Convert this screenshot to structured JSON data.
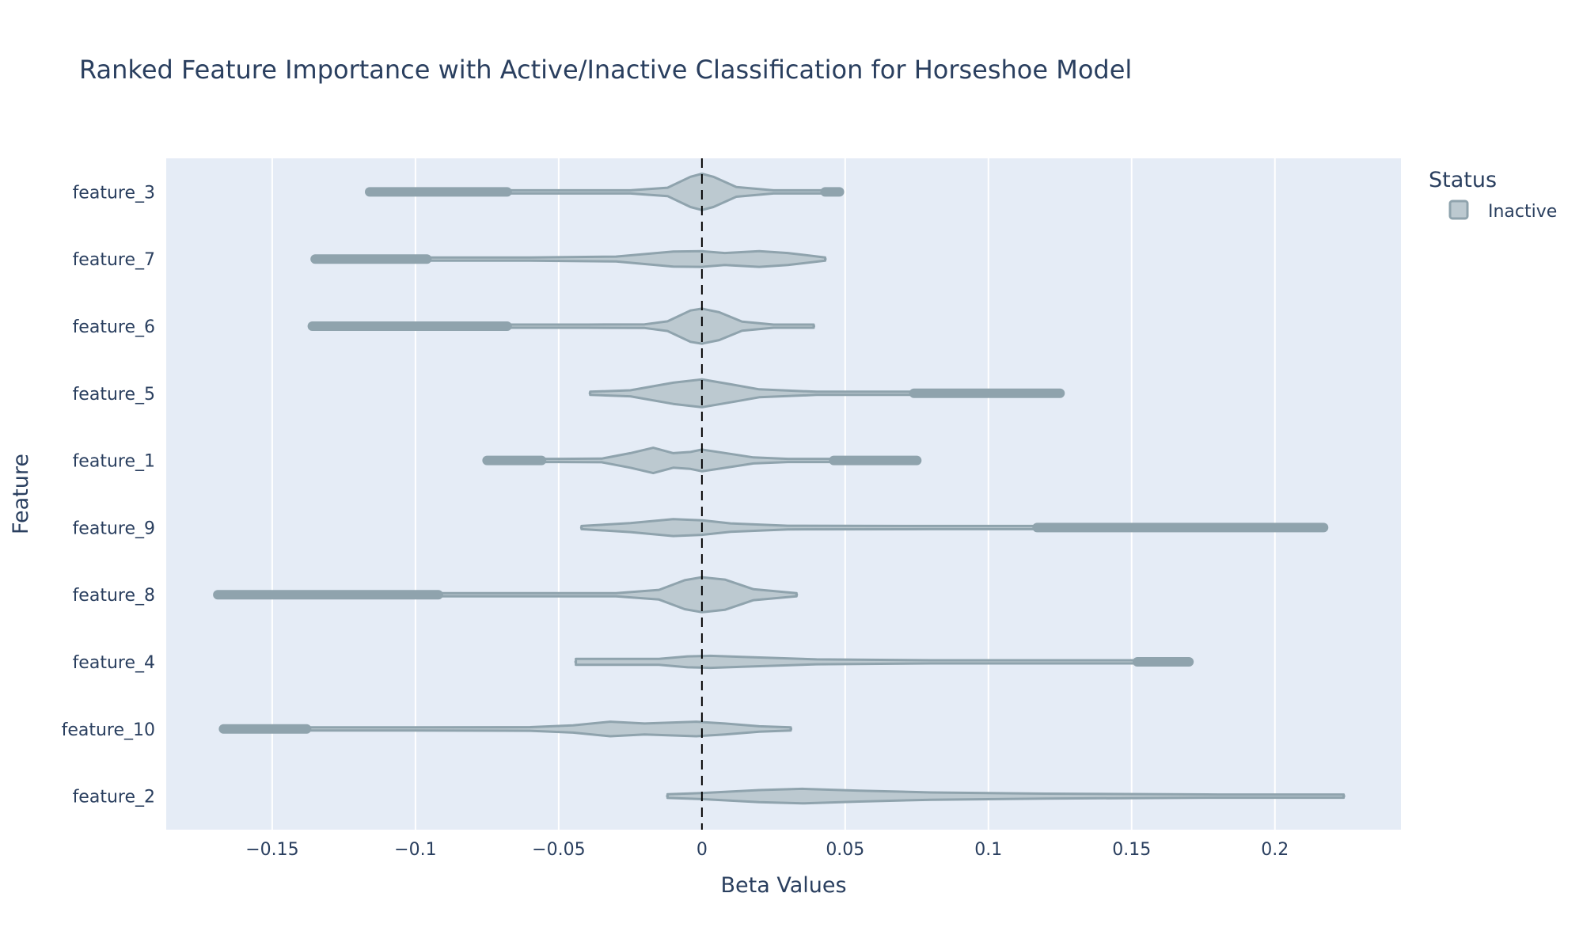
{
  "chart_data": {
    "type": "violin",
    "title": "Ranked Feature Importance with Active/Inactive Classification for Horseshoe Model",
    "xlabel": "Beta Values",
    "ylabel": "Feature",
    "xlim": [
      -0.187,
      0.244
    ],
    "xticks": [
      -0.15,
      -0.1,
      -0.05,
      0,
      0.05,
      0.1,
      0.15,
      0.2
    ],
    "xtick_labels": [
      "−0.15",
      "−0.1",
      "−0.05",
      "0",
      "0.05",
      "0.1",
      "0.15",
      "0.2"
    ],
    "reference_line": {
      "x": 0,
      "style": "dashed",
      "color": "#000000"
    },
    "grid": true,
    "legend": {
      "title": "Status",
      "position": "top-right",
      "entries": [
        {
          "name": "Inactive",
          "color": "#8fa3ad"
        }
      ]
    },
    "colors": {
      "background": "#e5ecf6",
      "violin_fill": "#bcc9d0",
      "violin_line": "#8fa3ad",
      "text": "#2a3f5f"
    },
    "features": [
      {
        "name": "feature_3",
        "status": "Inactive",
        "min": -0.116,
        "max": 0.048,
        "outliers_low": [
          -0.116,
          -0.068
        ],
        "outliers_high": [
          0.043,
          0.048
        ],
        "density": [
          [
            -0.116,
            0.01
          ],
          [
            -0.05,
            0.02
          ],
          [
            -0.025,
            0.05
          ],
          [
            -0.012,
            0.14
          ],
          [
            -0.004,
            0.5
          ],
          [
            0,
            0.6
          ],
          [
            0.004,
            0.5
          ],
          [
            0.012,
            0.16
          ],
          [
            0.025,
            0.05
          ],
          [
            0.048,
            0.01
          ]
        ]
      },
      {
        "name": "feature_7",
        "status": "Inactive",
        "min": -0.135,
        "max": 0.043,
        "outliers_low": [
          -0.135,
          -0.096
        ],
        "outliers_high": [],
        "density": [
          [
            -0.135,
            0.01
          ],
          [
            -0.06,
            0.03
          ],
          [
            -0.03,
            0.08
          ],
          [
            -0.01,
            0.25
          ],
          [
            0,
            0.26
          ],
          [
            0.008,
            0.2
          ],
          [
            0.02,
            0.26
          ],
          [
            0.03,
            0.2
          ],
          [
            0.043,
            0.03
          ]
        ]
      },
      {
        "name": "feature_6",
        "status": "Inactive",
        "min": -0.136,
        "max": 0.039,
        "outliers_low": [
          -0.136,
          -0.068
        ],
        "outliers_high": [],
        "density": [
          [
            -0.136,
            0.01
          ],
          [
            -0.04,
            0.03
          ],
          [
            -0.02,
            0.06
          ],
          [
            -0.012,
            0.16
          ],
          [
            -0.004,
            0.52
          ],
          [
            0,
            0.58
          ],
          [
            0.006,
            0.46
          ],
          [
            0.014,
            0.15
          ],
          [
            0.025,
            0.05
          ],
          [
            0.039,
            0.02
          ]
        ]
      },
      {
        "name": "feature_5",
        "status": "Inactive",
        "min": -0.039,
        "max": 0.125,
        "outliers_low": [],
        "outliers_high": [
          0.074,
          0.125
        ],
        "density": [
          [
            -0.039,
            0.03
          ],
          [
            -0.025,
            0.1
          ],
          [
            -0.01,
            0.35
          ],
          [
            0,
            0.46
          ],
          [
            0.01,
            0.3
          ],
          [
            0.02,
            0.13
          ],
          [
            0.04,
            0.05
          ],
          [
            0.07,
            0.03
          ],
          [
            0.125,
            0.01
          ]
        ]
      },
      {
        "name": "feature_1",
        "status": "Inactive",
        "min": -0.075,
        "max": 0.075,
        "outliers_low": [
          -0.075,
          -0.056
        ],
        "outliers_high": [
          0.046,
          0.075
        ],
        "density": [
          [
            -0.075,
            0.01
          ],
          [
            -0.05,
            0.02
          ],
          [
            -0.035,
            0.06
          ],
          [
            -0.025,
            0.24
          ],
          [
            -0.017,
            0.42
          ],
          [
            -0.01,
            0.24
          ],
          [
            -0.004,
            0.28
          ],
          [
            0,
            0.36
          ],
          [
            0.007,
            0.26
          ],
          [
            0.018,
            0.1
          ],
          [
            0.03,
            0.04
          ],
          [
            0.075,
            0.01
          ]
        ]
      },
      {
        "name": "feature_9",
        "status": "Inactive",
        "min": -0.042,
        "max": 0.217,
        "outliers_low": [],
        "outliers_high": [
          0.117,
          0.217
        ],
        "density": [
          [
            -0.042,
            0.03
          ],
          [
            -0.025,
            0.15
          ],
          [
            -0.01,
            0.28
          ],
          [
            0,
            0.24
          ],
          [
            0.01,
            0.14
          ],
          [
            0.03,
            0.06
          ],
          [
            0.08,
            0.03
          ],
          [
            0.217,
            0.01
          ]
        ]
      },
      {
        "name": "feature_8",
        "status": "Inactive",
        "min": -0.169,
        "max": 0.033,
        "outliers_low": [
          -0.169,
          -0.092
        ],
        "outliers_high": [],
        "density": [
          [
            -0.169,
            0.01
          ],
          [
            -0.06,
            0.02
          ],
          [
            -0.03,
            0.05
          ],
          [
            -0.015,
            0.16
          ],
          [
            -0.006,
            0.48
          ],
          [
            0,
            0.58
          ],
          [
            0.008,
            0.5
          ],
          [
            0.018,
            0.18
          ],
          [
            0.033,
            0.04
          ]
        ]
      },
      {
        "name": "feature_4",
        "status": "Inactive",
        "min": -0.044,
        "max": 0.17,
        "outliers_low": [],
        "outliers_high": [
          0.152,
          0.17
        ],
        "density": [
          [
            -0.044,
            0.1
          ],
          [
            -0.03,
            0.1
          ],
          [
            -0.015,
            0.1
          ],
          [
            -0.005,
            0.18
          ],
          [
            0.003,
            0.2
          ],
          [
            0.015,
            0.16
          ],
          [
            0.04,
            0.08
          ],
          [
            0.08,
            0.03
          ],
          [
            0.17,
            0.02
          ]
        ]
      },
      {
        "name": "feature_10",
        "status": "Inactive",
        "min": -0.167,
        "max": 0.031,
        "outliers_low": [
          -0.167,
          -0.138
        ],
        "outliers_high": [],
        "density": [
          [
            -0.167,
            0.01
          ],
          [
            -0.1,
            0.03
          ],
          [
            -0.06,
            0.06
          ],
          [
            -0.045,
            0.12
          ],
          [
            -0.032,
            0.24
          ],
          [
            -0.02,
            0.18
          ],
          [
            -0.008,
            0.22
          ],
          [
            -0.002,
            0.24
          ],
          [
            0.008,
            0.18
          ],
          [
            0.02,
            0.09
          ],
          [
            0.031,
            0.02
          ]
        ]
      },
      {
        "name": "feature_2",
        "status": "Inactive",
        "min": -0.012,
        "max": 0.224,
        "outliers_low": [],
        "outliers_high": [],
        "density": [
          [
            -0.012,
            0.06
          ],
          [
            0,
            0.1
          ],
          [
            0.02,
            0.2
          ],
          [
            0.035,
            0.24
          ],
          [
            0.055,
            0.18
          ],
          [
            0.08,
            0.12
          ],
          [
            0.12,
            0.08
          ],
          [
            0.18,
            0.05
          ],
          [
            0.224,
            0.02
          ]
        ]
      }
    ]
  }
}
